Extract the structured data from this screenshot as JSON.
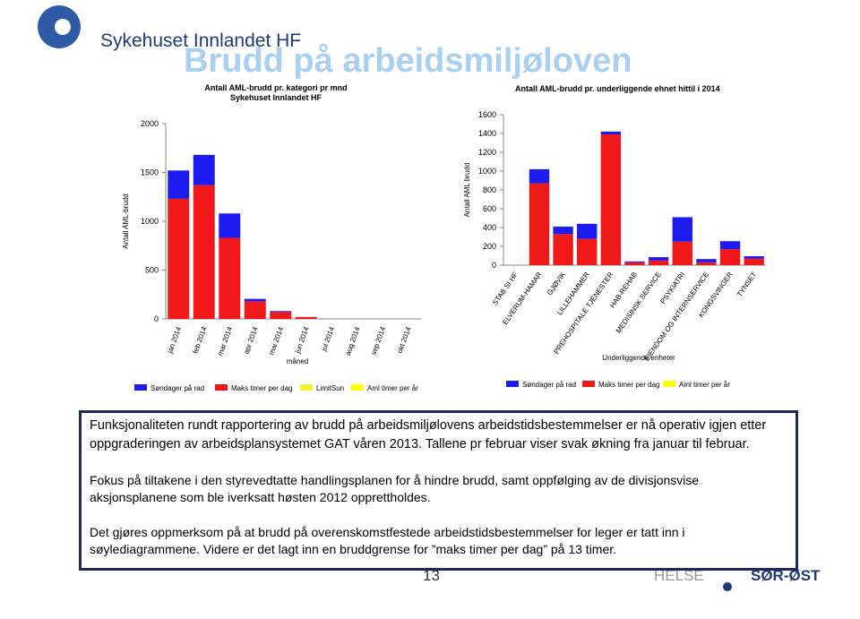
{
  "header": {
    "logo_text": "Sykehuset Innlandet HF",
    "title": "Brudd på arbeidsmiljøloven"
  },
  "chart_data": [
    {
      "type": "stacked_bar",
      "title": "Antall AML-brudd pr. kategori pr mnd",
      "subtitle": "Sykehuset Innlandet HF",
      "y_label": "Antall AML-brudd",
      "x_label": "måned",
      "grid": false,
      "categories": [
        "jan 2014",
        "feb 2014",
        "mar 2014",
        "apr 2014",
        "mai 2014",
        "jun 2014",
        "jul 2014",
        "aug 2014",
        "sep 2014",
        "okt 2014"
      ],
      "series": [
        {
          "name": "Søndager på rad",
          "color": "#1c1cf0",
          "values": [
            290,
            310,
            250,
            25,
            10,
            0,
            0,
            0,
            0,
            0
          ]
        },
        {
          "name": "Maks timer per dag",
          "color": "#f01818",
          "values": [
            1230,
            1370,
            830,
            180,
            70,
            20,
            0,
            0,
            0,
            0
          ]
        },
        {
          "name": "LimitSun",
          "color": "#f2f230",
          "values": [
            0,
            0,
            0,
            0,
            0,
            0,
            0,
            0,
            0,
            0
          ]
        },
        {
          "name": "Aml timer per år",
          "color": "#ffff00",
          "values": [
            0,
            0,
            0,
            0,
            0,
            0,
            0,
            0,
            0,
            0
          ]
        }
      ],
      "ylim": [
        0,
        2000
      ],
      "yticks": [
        0,
        500,
        1000,
        1500,
        2000
      ]
    },
    {
      "type": "stacked_bar",
      "title": "Antall AML-brudd pr. underliggende ehnet hittil i 2014",
      "y_label": "Antall AML brudd",
      "x_label": "Underliggende enheter",
      "grid": false,
      "categories": [
        "STAB SI HF",
        "ELVERUM-HAMAR",
        "GJØVIK",
        "LILLEHAMMER",
        "PREHOSPITALE TJENESTER",
        "HAB-REHAB",
        "MEDISINSK SERVICE",
        "PSYKIATRI",
        "EIENDOM OG INTERNSERVICE",
        "KONGSVINGER",
        "TYNSET"
      ],
      "series": [
        {
          "name": "Søndager på rad",
          "color": "#1c1cf0",
          "values": [
            0,
            150,
            80,
            160,
            30,
            10,
            35,
            260,
            35,
            85,
            25
          ]
        },
        {
          "name": "Maks timer per dag",
          "color": "#f01818",
          "values": [
            0,
            870,
            330,
            280,
            1390,
            30,
            50,
            250,
            30,
            170,
            70
          ]
        },
        {
          "name": "Aml timer per år",
          "color": "#ffff00",
          "values": [
            0,
            0,
            0,
            0,
            0,
            0,
            0,
            0,
            0,
            0,
            0
          ]
        }
      ],
      "ylim": [
        0,
        1600
      ],
      "yticks": [
        0,
        200,
        400,
        600,
        800,
        1000,
        1200,
        1400,
        1600
      ]
    }
  ],
  "text_box": {
    "paragraphs": [
      "Funksjonaliteten rundt rapportering av brudd på arbeidsmiljølovens arbeidstidsbestemmelser er nå operativ igjen etter oppgraderingen av arbeidsplansystemet GAT våren 2013. Tallene pr februar viser svak økning fra januar til februar.",
      "Fokus på tiltakene i den styrevedtatte handlingsplanen for å hindre brudd, samt oppfølging av de divisjonsvise aksjonsplanene som ble iverksatt høsten 2012 opprettholdes.",
      "Det gjøres oppmerksom på at brudd på overenskomstfestede arbeidstidsbestemmelser for leger er tatt inn i søylediagrammene. Videre er det lagt inn en bruddgrense for ”maks timer per dag” på 13 timer."
    ]
  },
  "footer": {
    "page_number": "13",
    "brand_left": "HELSE",
    "brand_right": "SØR-ØST"
  }
}
